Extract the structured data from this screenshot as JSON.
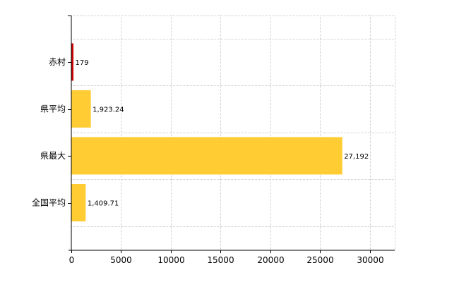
{
  "chart_data": {
    "type": "bar",
    "orientation": "horizontal",
    "categories": [
      "赤村",
      "県平均",
      "県最大",
      "全国平均"
    ],
    "values": [
      179,
      1923.24,
      27192,
      1409.71
    ],
    "value_labels": [
      "179",
      "1,923.24",
      "27,192",
      "1,409.71"
    ],
    "bar_colors": [
      "#cc0000",
      "#ffcc33",
      "#ffcc33",
      "#ffcc33"
    ],
    "x_ticks": [
      0,
      5000,
      10000,
      15000,
      20000,
      25000,
      30000
    ],
    "x_tick_labels": [
      "0",
      "5000",
      "10000",
      "15000",
      "20000",
      "25000",
      "30000"
    ],
    "xlim": [
      0,
      32500
    ],
    "grid": true,
    "legend": "none"
  }
}
